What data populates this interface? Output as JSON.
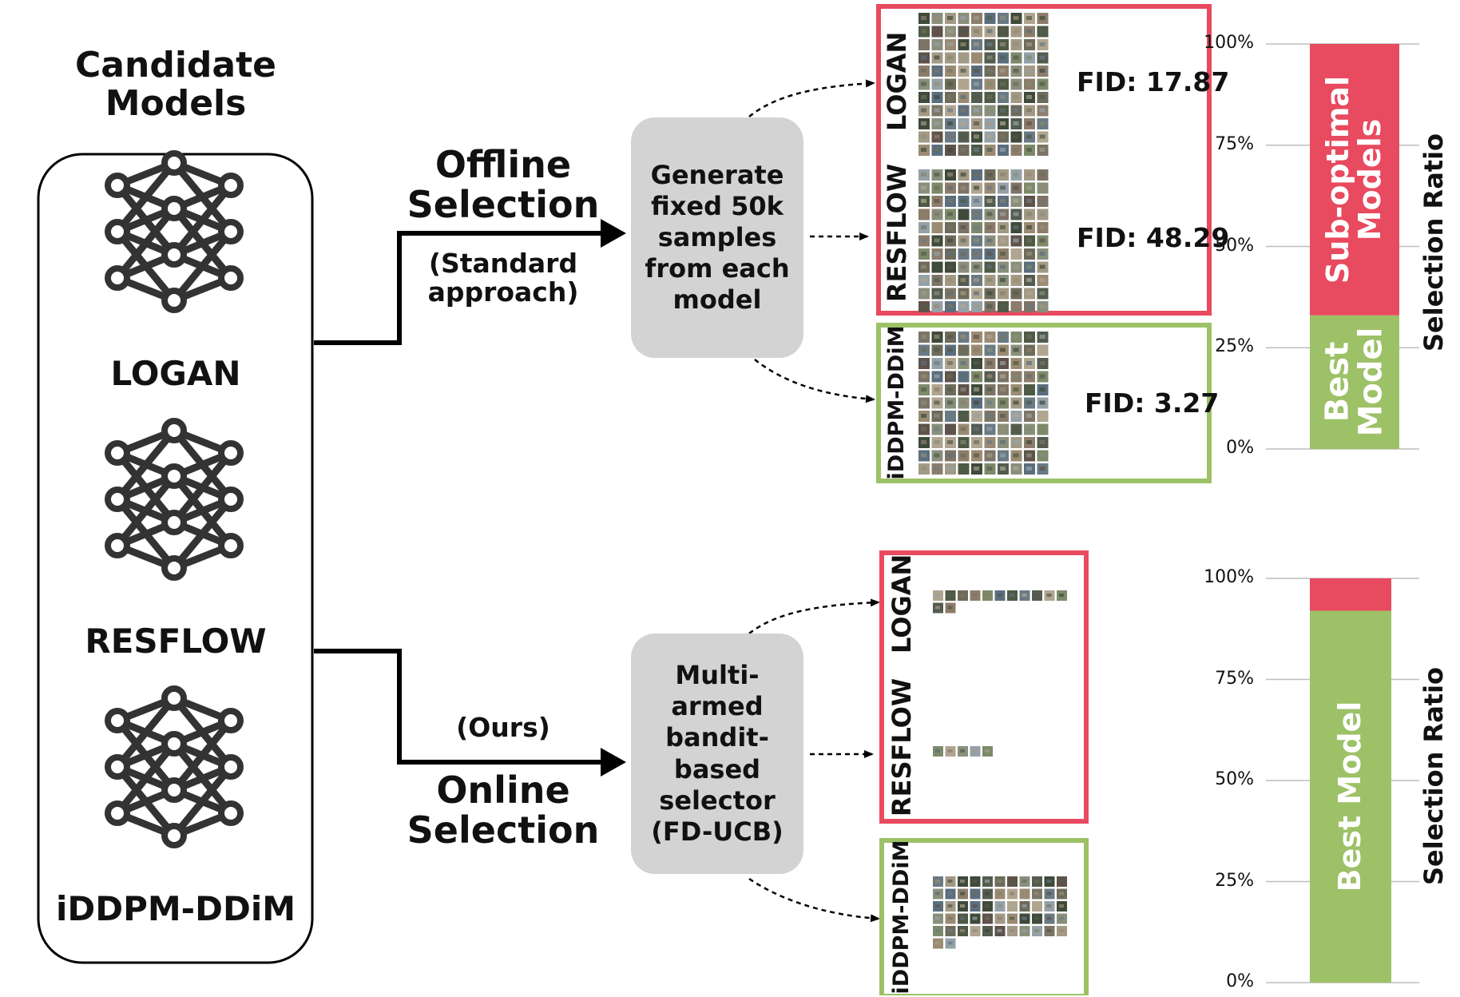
{
  "candidates": {
    "title": "Candidate\nModels",
    "models": [
      "LOGAN",
      "RESFLOW",
      "iDDPM-DDiM"
    ]
  },
  "offline": {
    "title": "Offline\nSelection",
    "subtitle": "(Standard\napproach)",
    "process": "Generate\nfixed 50k\nsamples\nfrom each\nmodel",
    "panels": [
      {
        "model": "LOGAN",
        "fid": "FID: 17.87",
        "status": "sub-optimal"
      },
      {
        "model": "RESFLOW",
        "fid": "FID: 48.29",
        "status": "sub-optimal"
      },
      {
        "model": "iDDPM-DDiM",
        "fid": "FID: 3.27",
        "status": "best"
      }
    ]
  },
  "online": {
    "subtitle": "(Ours)",
    "title": "Online\nSelection",
    "process": "Multi-armed\nbandit-\nbased\nselector\n(FD-UCB)",
    "panels": [
      {
        "model": "LOGAN",
        "status": "sub-optimal"
      },
      {
        "model": "RESFLOW",
        "status": "sub-optimal"
      },
      {
        "model": "iDDPM-DDiM",
        "status": "best"
      }
    ]
  },
  "colors": {
    "suboptimal": "#e84a5f",
    "best": "#9dc167",
    "process_box": "#d3d3d3"
  },
  "chart_data": [
    {
      "type": "bar",
      "stacked": true,
      "ylabel": "Selection Ratio",
      "ylim": [
        0,
        100
      ],
      "yticks": [
        "0%",
        "25%",
        "50%",
        "75%",
        "100%"
      ],
      "series": [
        {
          "name": "Best\nModel",
          "values": [
            33
          ]
        },
        {
          "name": "Sub-optimal\nModels",
          "values": [
            67
          ]
        }
      ]
    },
    {
      "type": "bar",
      "stacked": true,
      "ylabel": "Selection Ratio",
      "ylim": [
        0,
        100
      ],
      "yticks": [
        "0%",
        "25%",
        "50%",
        "75%",
        "100%"
      ],
      "series": [
        {
          "name": "Best Model",
          "values": [
            92
          ]
        },
        {
          "name": "",
          "values": [
            8
          ]
        }
      ]
    }
  ]
}
